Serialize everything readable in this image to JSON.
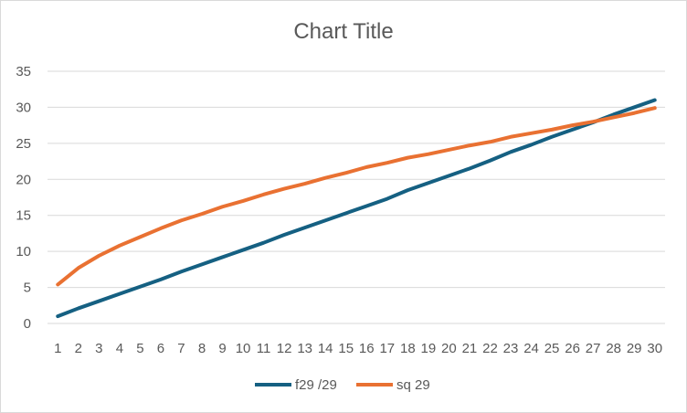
{
  "chart_data": {
    "type": "line",
    "title": "Chart Title",
    "xlabel": "",
    "ylabel": "",
    "x": [
      1,
      2,
      3,
      4,
      5,
      6,
      7,
      8,
      9,
      10,
      11,
      12,
      13,
      14,
      15,
      16,
      17,
      18,
      19,
      20,
      21,
      22,
      23,
      24,
      25,
      26,
      27,
      28,
      29,
      30
    ],
    "ylim": [
      0,
      35
    ],
    "yticks": [
      0,
      5,
      10,
      15,
      20,
      25,
      30,
      35
    ],
    "grid": true,
    "legend": "bottom",
    "series": [
      {
        "name": "f29 /29",
        "color": "#156082",
        "values": [
          1.0,
          2.1,
          3.1,
          4.1,
          5.1,
          6.1,
          7.2,
          8.2,
          9.2,
          10.2,
          11.2,
          12.3,
          13.3,
          14.3,
          15.3,
          16.3,
          17.3,
          18.5,
          19.5,
          20.5,
          21.5,
          22.6,
          23.8,
          24.8,
          25.9,
          26.9,
          27.9,
          29.0,
          30.0,
          31.0
        ]
      },
      {
        "name": "sq 29",
        "color": "#E97132",
        "values": [
          5.4,
          7.7,
          9.4,
          10.8,
          12.0,
          13.2,
          14.3,
          15.2,
          16.2,
          17.0,
          17.9,
          18.7,
          19.4,
          20.2,
          20.9,
          21.7,
          22.3,
          23.0,
          23.5,
          24.1,
          24.7,
          25.2,
          25.9,
          26.4,
          26.9,
          27.5,
          28.0,
          28.6,
          29.2,
          29.9
        ]
      }
    ]
  }
}
